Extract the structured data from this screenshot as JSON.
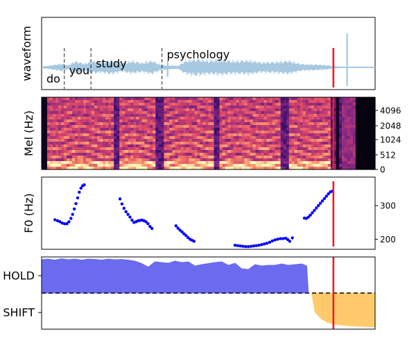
{
  "chart_data": [
    {
      "type": "line",
      "ylabel": "waveform",
      "grid": false,
      "xlim": [
        0,
        1
      ],
      "ylim": [
        -1,
        1
      ],
      "line_color": "#a6c8e0",
      "cursor": {
        "x": 0.875,
        "color": "#ee1c1c"
      },
      "words": [
        {
          "text": "do",
          "x_start": 0.0,
          "x_end": 0.068
        },
        {
          "text": "you",
          "x_start": 0.068,
          "x_end": 0.148
        },
        {
          "text": "study",
          "x_start": 0.148,
          "x_end": 0.361
        },
        {
          "text": "psychology",
          "x_start": 0.361,
          "x_end": 0.875
        }
      ],
      "word_boundaries": [
        0.068,
        0.148,
        0.361
      ],
      "envelope": [
        {
          "x": 0.0,
          "a": 0.04
        },
        {
          "x": 0.03,
          "a": 0.1
        },
        {
          "x": 0.06,
          "a": 0.18
        },
        {
          "x": 0.08,
          "a": 0.1
        },
        {
          "x": 0.1,
          "a": 0.3
        },
        {
          "x": 0.13,
          "a": 0.18
        },
        {
          "x": 0.15,
          "a": 0.3
        },
        {
          "x": 0.18,
          "a": 0.25
        },
        {
          "x": 0.21,
          "a": 0.33
        },
        {
          "x": 0.24,
          "a": 0.2
        },
        {
          "x": 0.27,
          "a": 0.3
        },
        {
          "x": 0.3,
          "a": 0.22
        },
        {
          "x": 0.33,
          "a": 0.32
        },
        {
          "x": 0.36,
          "a": 0.12
        },
        {
          "x": 0.38,
          "a": 0.1
        },
        {
          "x": 0.41,
          "a": 0.08
        },
        {
          "x": 0.43,
          "a": 0.3
        },
        {
          "x": 0.46,
          "a": 0.4
        },
        {
          "x": 0.5,
          "a": 0.32
        },
        {
          "x": 0.54,
          "a": 0.36
        },
        {
          "x": 0.58,
          "a": 0.3
        },
        {
          "x": 0.62,
          "a": 0.34
        },
        {
          "x": 0.66,
          "a": 0.24
        },
        {
          "x": 0.7,
          "a": 0.26
        },
        {
          "x": 0.74,
          "a": 0.32
        },
        {
          "x": 0.78,
          "a": 0.16
        },
        {
          "x": 0.82,
          "a": 0.14
        },
        {
          "x": 0.86,
          "a": 0.1
        },
        {
          "x": 0.875,
          "a": 0.04
        },
        {
          "x": 0.9,
          "a": 0.01
        },
        {
          "x": 1.0,
          "a": 0.01
        }
      ],
      "spikes": [
        {
          "x": 0.378,
          "y_top": 0.28,
          "y_bottom": -0.38
        },
        {
          "x": 0.916,
          "y_top": 1.35,
          "y_bottom": -0.75
        }
      ]
    },
    {
      "type": "heatmap",
      "ylabel": "Mel (Hz)",
      "grid": false,
      "yticks": [
        "0",
        "512",
        "1024",
        "2048",
        "4096"
      ],
      "colormap": [
        "#000004",
        "#3b0f70",
        "#8c2981",
        "#de4968",
        "#fe9f6d",
        "#fcfdbf"
      ],
      "cursor": {
        "x": 0.875,
        "color": "#ee1c1c"
      }
    },
    {
      "type": "scatter",
      "ylabel": "F0 (Hz)",
      "grid": false,
      "yticks": [
        200,
        300
      ],
      "ylim": [
        170,
        385
      ],
      "marker_color": "#0000ff",
      "cursor": {
        "x": 0.875,
        "color": "#ee1c1c"
      },
      "segments": [
        {
          "points": [
            [
              0.04,
              258
            ],
            [
              0.048,
              255
            ],
            [
              0.055,
              252
            ],
            [
              0.062,
              248
            ],
            [
              0.069,
              246
            ],
            [
              0.076,
              246
            ],
            [
              0.082,
              252
            ],
            [
              0.088,
              262
            ],
            [
              0.093,
              274
            ],
            [
              0.098,
              290
            ],
            [
              0.103,
              306
            ],
            [
              0.108,
              323
            ],
            [
              0.113,
              340
            ],
            [
              0.118,
              352
            ],
            [
              0.123,
              359
            ],
            [
              0.128,
              362
            ]
          ]
        },
        {
          "points": [
            [
              0.235,
              320
            ],
            [
              0.241,
              305
            ],
            [
              0.247,
              292
            ],
            [
              0.253,
              282
            ],
            [
              0.259,
              274
            ],
            [
              0.265,
              266
            ],
            [
              0.271,
              257
            ],
            [
              0.277,
              250
            ],
            [
              0.283,
              252
            ],
            [
              0.289,
              255
            ],
            [
              0.295,
              256
            ],
            [
              0.301,
              257
            ],
            [
              0.307,
              255
            ],
            [
              0.313,
              252
            ],
            [
              0.319,
              246
            ],
            [
              0.325,
              238
            ],
            [
              0.331,
              232
            ]
          ]
        },
        {
          "points": [
            [
              0.403,
              240
            ],
            [
              0.409,
              233
            ],
            [
              0.415,
              227
            ],
            [
              0.421,
              222
            ],
            [
              0.427,
              216
            ],
            [
              0.433,
              211
            ],
            [
              0.439,
              205
            ],
            [
              0.445,
              200
            ],
            [
              0.451,
              197
            ],
            [
              0.457,
              194
            ]
          ]
        },
        {
          "points": [
            [
              0.58,
              182
            ],
            [
              0.588,
              181
            ],
            [
              0.596,
              180
            ],
            [
              0.604,
              179
            ],
            [
              0.612,
              178
            ],
            [
              0.62,
              178
            ],
            [
              0.628,
              179
            ],
            [
              0.636,
              180
            ],
            [
              0.644,
              181
            ],
            [
              0.652,
              182
            ],
            [
              0.66,
              184
            ],
            [
              0.668,
              186
            ],
            [
              0.676,
              188
            ],
            [
              0.684,
              191
            ],
            [
              0.692,
              195
            ],
            [
              0.7,
              198
            ],
            [
              0.708,
              200
            ],
            [
              0.716,
              202
            ],
            [
              0.724,
              202
            ],
            [
              0.732,
              203
            ],
            [
              0.738,
              199
            ],
            [
              0.744,
              194
            ],
            [
              0.752,
              204
            ]
          ]
        },
        {
          "points": [
            [
              0.788,
              263
            ],
            [
              0.794,
              262
            ],
            [
              0.8,
              266
            ],
            [
              0.806,
              272
            ],
            [
              0.812,
              279
            ],
            [
              0.818,
              286
            ],
            [
              0.824,
              293
            ],
            [
              0.83,
              300
            ],
            [
              0.836,
              307
            ],
            [
              0.842,
              314
            ],
            [
              0.848,
              321
            ],
            [
              0.854,
              328
            ],
            [
              0.86,
              335
            ],
            [
              0.866,
              341
            ],
            [
              0.872,
              343
            ]
          ]
        }
      ]
    },
    {
      "type": "area",
      "yticks": [
        "HOLD",
        "SHIFT"
      ],
      "grid": false,
      "threshold_line": "dashed",
      "cursor": {
        "x": 0.875,
        "color": "#ee1c1c"
      },
      "series": [
        {
          "name": "HOLD",
          "color": "#6464f0",
          "x": [
            0.0,
            0.02,
            0.04,
            0.06,
            0.08,
            0.1,
            0.12,
            0.14,
            0.16,
            0.18,
            0.2,
            0.22,
            0.24,
            0.26,
            0.28,
            0.3,
            0.32,
            0.34,
            0.36,
            0.38,
            0.4,
            0.42,
            0.44,
            0.46,
            0.48,
            0.5,
            0.52,
            0.54,
            0.56,
            0.58,
            0.6,
            0.62,
            0.64,
            0.66,
            0.68,
            0.7,
            0.72,
            0.74,
            0.76,
            0.78,
            0.795,
            0.8
          ],
          "values": [
            0.96,
            0.98,
            0.95,
            0.99,
            0.96,
            0.98,
            0.95,
            0.98,
            0.97,
            0.95,
            0.98,
            0.96,
            0.97,
            0.95,
            0.92,
            0.85,
            0.75,
            0.9,
            0.88,
            0.86,
            0.92,
            0.88,
            0.9,
            0.78,
            0.82,
            0.85,
            0.88,
            0.9,
            0.8,
            0.86,
            0.7,
            0.68,
            0.82,
            0.78,
            0.8,
            0.8,
            0.84,
            0.8,
            0.82,
            0.84,
            0.78,
            0.0
          ]
        },
        {
          "name": "SHIFT",
          "color": "#ffc864",
          "x": [
            0.81,
            0.82,
            0.84,
            0.86,
            0.88,
            0.9,
            0.92,
            0.94,
            0.96,
            0.98,
            1.0
          ],
          "values": [
            0.0,
            -0.55,
            -0.75,
            -0.85,
            -0.9,
            -0.92,
            -0.94,
            -0.95,
            -0.96,
            -0.97,
            -0.97
          ]
        }
      ]
    }
  ]
}
